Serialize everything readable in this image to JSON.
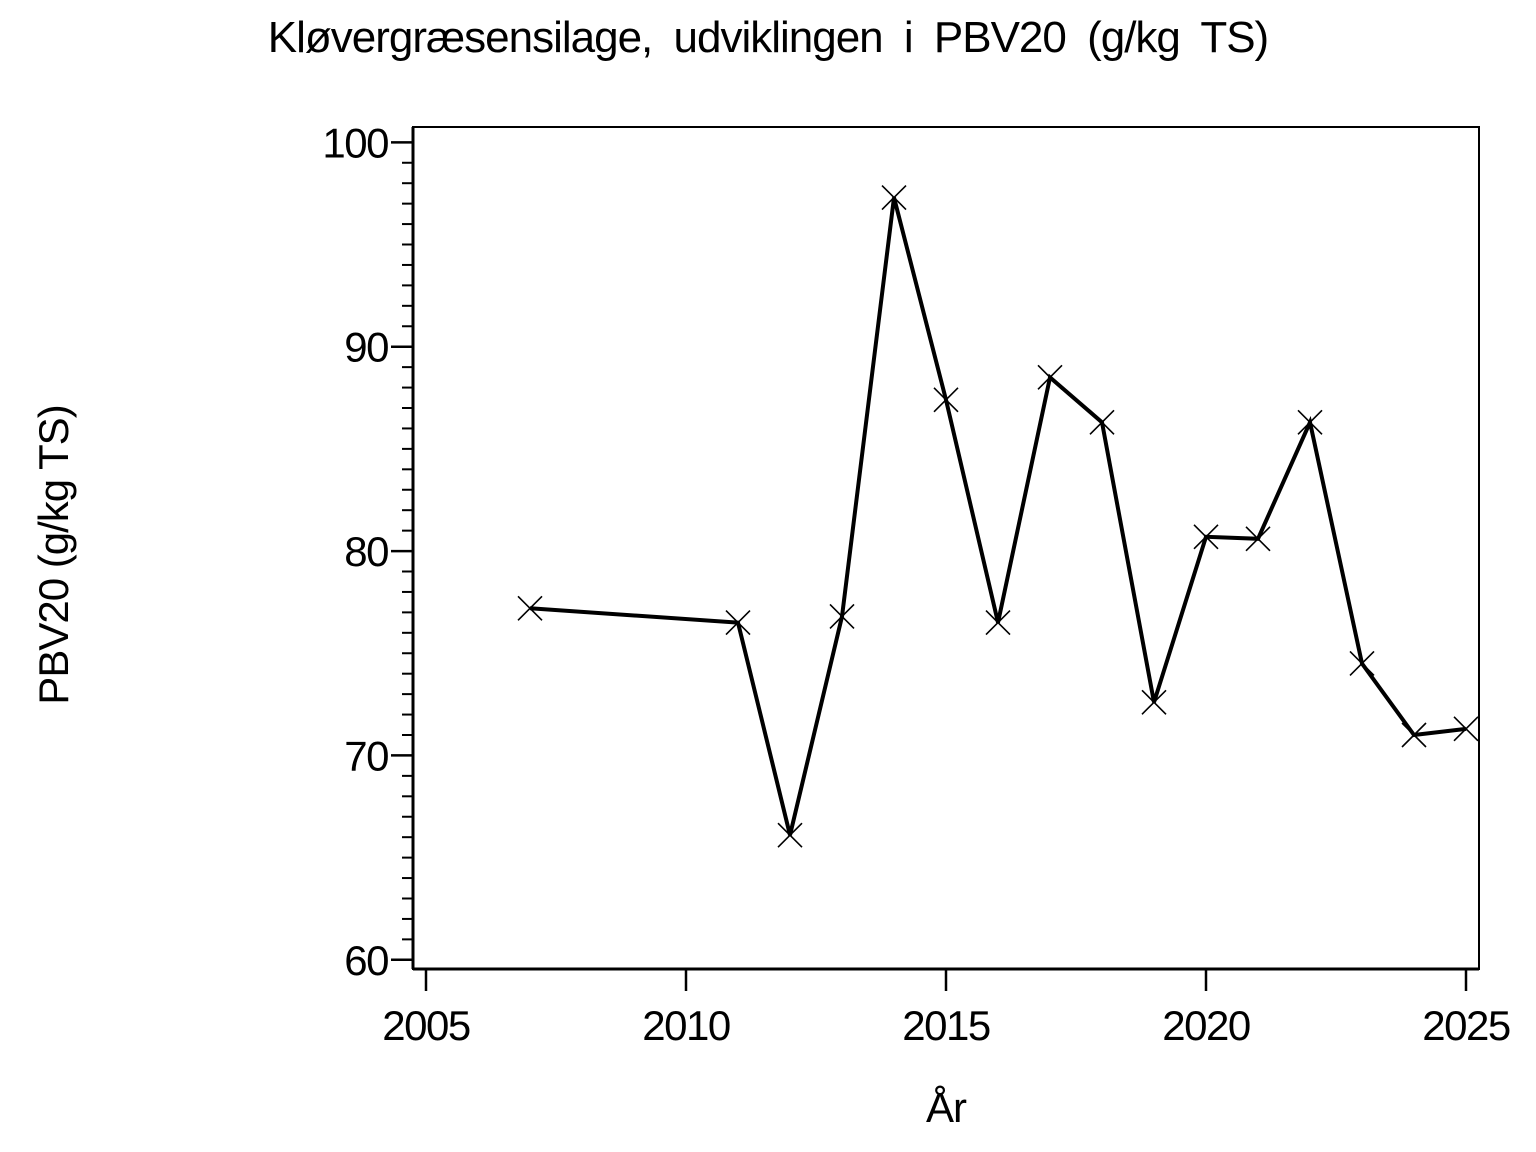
{
  "chart_data": {
    "type": "line",
    "title": "Kløvergræsensilage, udviklingen i PBV20 (g/kg TS)",
    "xlabel": "År",
    "ylabel": "PBV20 (g/kg TS)",
    "x": [
      2007,
      2011,
      2012,
      2013,
      2014,
      2015,
      2016,
      2017,
      2018,
      2019,
      2020,
      2021,
      2022,
      2023,
      2024,
      2025
    ],
    "y": [
      77.2,
      76.5,
      66.1,
      76.8,
      97.3,
      87.4,
      76.5,
      88.5,
      86.3,
      72.6,
      80.7,
      80.6,
      86.3,
      74.5,
      71.0,
      71.3
    ],
    "xlim": [
      2004.75,
      2025.25
    ],
    "ylim": [
      59.55,
      100.75
    ],
    "x_ticks": [
      2005,
      2010,
      2015,
      2020,
      2025
    ],
    "x_tick_labels": [
      "2005",
      "2010",
      "2015",
      "2020",
      "2025"
    ],
    "y_ticks": [
      60,
      70,
      80,
      90,
      100
    ],
    "y_tick_labels": [
      "60",
      "70",
      "80",
      "90",
      "100"
    ],
    "y_minor_tick_step": 1,
    "grid": false,
    "legend": "none",
    "marker": "x",
    "line_color": "#000000",
    "background_color": "#ffffff",
    "text_color": "#000000"
  }
}
